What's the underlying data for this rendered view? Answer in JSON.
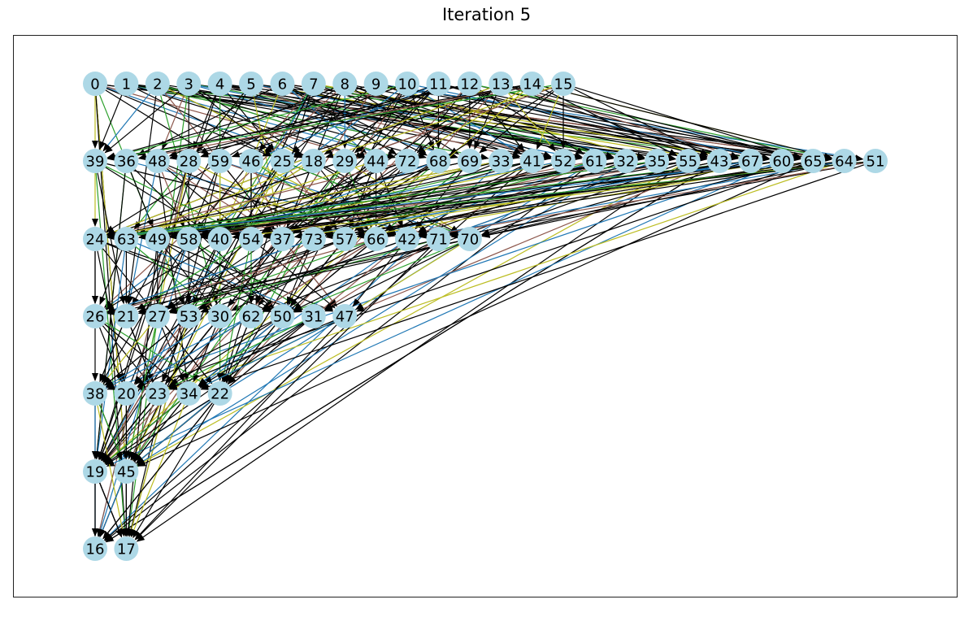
{
  "title": "Iteration 5",
  "colors": {
    "node_fill": "#add8e6",
    "edge_default": "#000000",
    "edge_blue": "#1f77b4",
    "edge_olive": "#bcbd22",
    "edge_green": "#2ca02c",
    "edge_brown": "#8c564b",
    "frame": "#222222"
  },
  "graph": {
    "layers": [
      [
        "0",
        "1",
        "2",
        "3",
        "4",
        "5",
        "6",
        "7",
        "8",
        "9",
        "10",
        "11",
        "12",
        "13",
        "14",
        "15"
      ],
      [
        "39",
        "36",
        "48",
        "28",
        "59",
        "46",
        "25",
        "18",
        "29",
        "44",
        "72",
        "68",
        "69",
        "33",
        "41",
        "52",
        "61",
        "32",
        "35",
        "55",
        "43",
        "67",
        "60",
        "65",
        "64",
        "51"
      ],
      [
        "24",
        "63",
        "49",
        "58",
        "40",
        "54",
        "37",
        "73",
        "57",
        "66",
        "42",
        "71",
        "70"
      ],
      [
        "26",
        "21",
        "27",
        "53",
        "30",
        "62",
        "50",
        "31",
        "47"
      ],
      [
        "38",
        "20",
        "23",
        "34",
        "22"
      ],
      [
        "19",
        "45"
      ],
      [
        "16",
        "17"
      ]
    ]
  }
}
